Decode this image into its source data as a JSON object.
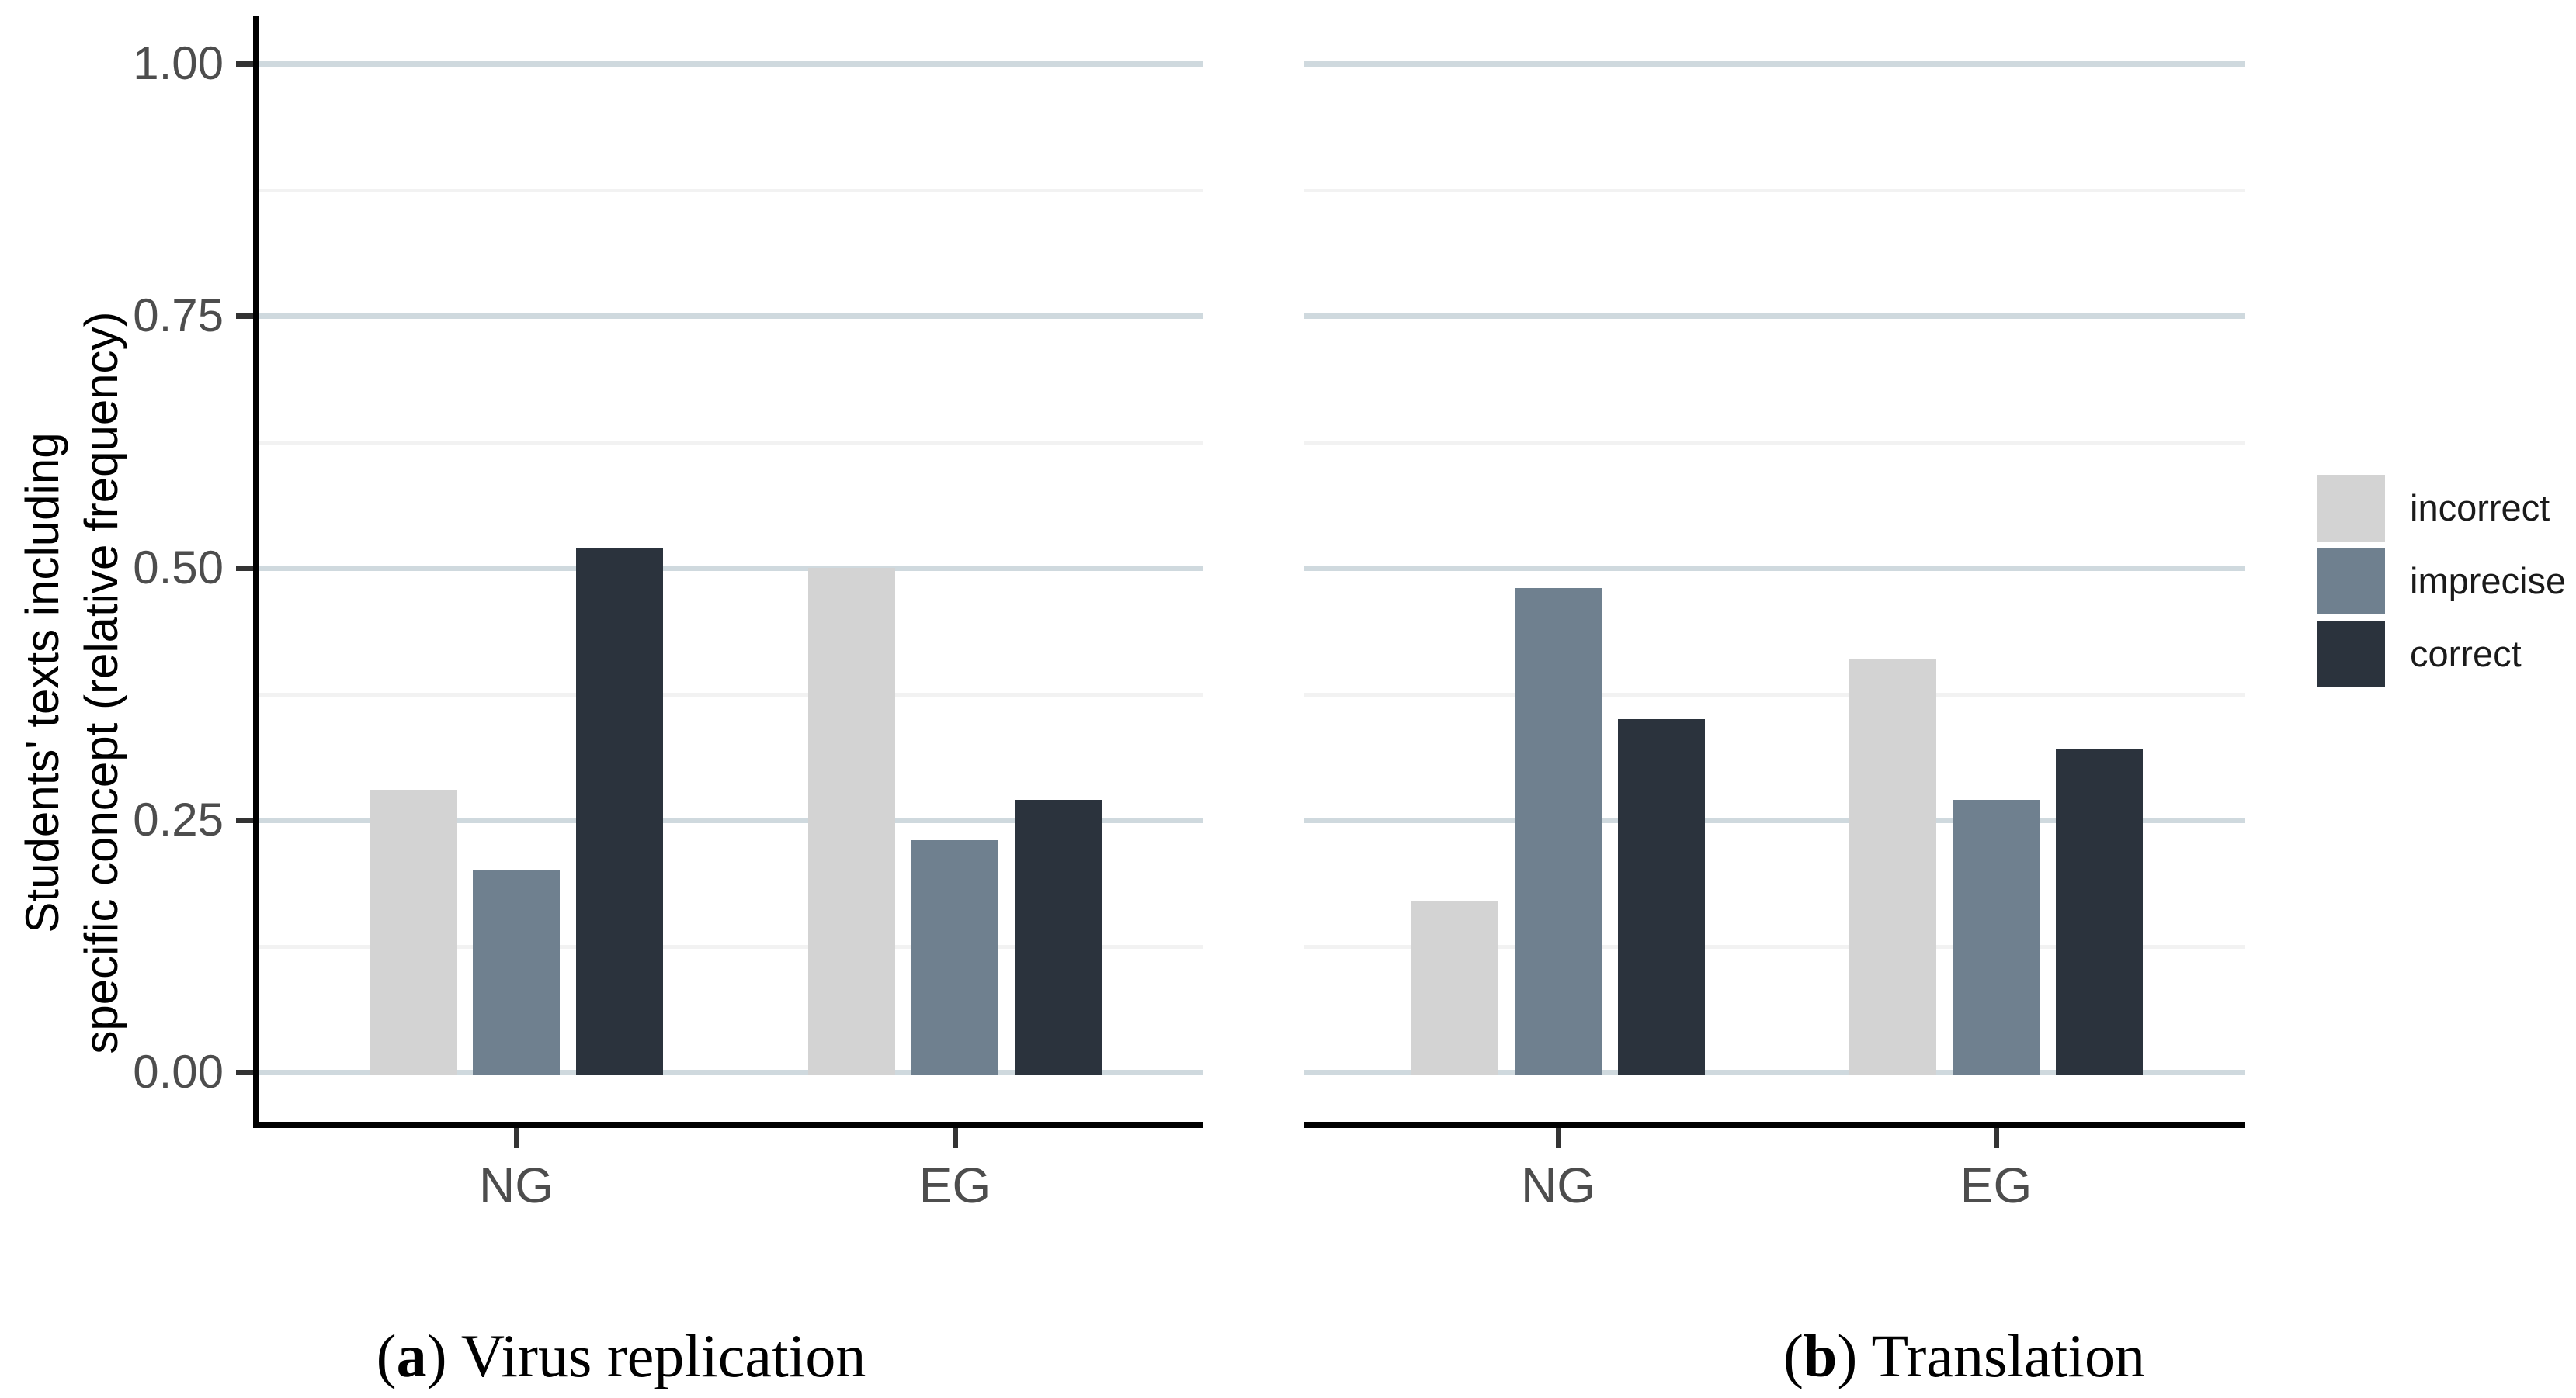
{
  "figure": {
    "background": "#ffffff",
    "y_axis_title_line1": "Students' texts including",
    "y_axis_title_line2": "specific concept (relative frequency)"
  },
  "axes": {
    "y_tick_labels": [
      "1.00",
      "0.75",
      "0.50",
      "0.25",
      "0.00"
    ],
    "y_tick_values": [
      1.0,
      0.75,
      0.5,
      0.25,
      0.0
    ],
    "y_minor_values": [
      0.875,
      0.625,
      0.375,
      0.125
    ],
    "x_categories": [
      "NG",
      "EG"
    ]
  },
  "legend": {
    "position": "right",
    "items": [
      {
        "label": "incorrect",
        "color": "#d3d3d3"
      },
      {
        "label": "imprecise",
        "color": "#6f808f"
      },
      {
        "label": "correct",
        "color": "#2b333d"
      }
    ]
  },
  "captions": {
    "a": {
      "pre": "(",
      "letter": "a",
      "post": ") Virus replication"
    },
    "b": {
      "pre": "(",
      "letter": "b",
      "post": ") Translation"
    }
  },
  "chart_data": [
    {
      "type": "bar",
      "panel": "a",
      "title": "(a) Virus replication",
      "categories": [
        "NG",
        "EG"
      ],
      "series": [
        {
          "name": "incorrect",
          "color": "#d3d3d3",
          "values": [
            0.28,
            0.5
          ]
        },
        {
          "name": "imprecise",
          "color": "#6f808f",
          "values": [
            0.2,
            0.23
          ]
        },
        {
          "name": "correct",
          "color": "#2b333d",
          "values": [
            0.52,
            0.27
          ]
        }
      ],
      "xlabel": "",
      "ylabel": "Students' texts including specific concept (relative frequency)",
      "ylim": [
        0,
        1
      ],
      "yticks": [
        0,
        0.25,
        0.5,
        0.75,
        1.0
      ],
      "grid": "on",
      "legend_position": "right"
    },
    {
      "type": "bar",
      "panel": "b",
      "title": "(b) Translation",
      "categories": [
        "NG",
        "EG"
      ],
      "series": [
        {
          "name": "incorrect",
          "color": "#d3d3d3",
          "values": [
            0.17,
            0.41
          ]
        },
        {
          "name": "imprecise",
          "color": "#6f808f",
          "values": [
            0.48,
            0.27
          ]
        },
        {
          "name": "correct",
          "color": "#2b333d",
          "values": [
            0.35,
            0.32
          ]
        }
      ],
      "xlabel": "",
      "ylabel": "Students' texts including specific concept (relative frequency)",
      "ylim": [
        0,
        1
      ],
      "yticks": [
        0,
        0.25,
        0.5,
        0.75,
        1.0
      ],
      "grid": "on",
      "legend_position": "right"
    }
  ],
  "style_colors": {
    "gridline_major": "#cfd9de",
    "gridline_minor": "#f2f2f2",
    "axis_line": "#000000",
    "tick_mark": "#333333",
    "tick_label": "#4d4d4d"
  }
}
